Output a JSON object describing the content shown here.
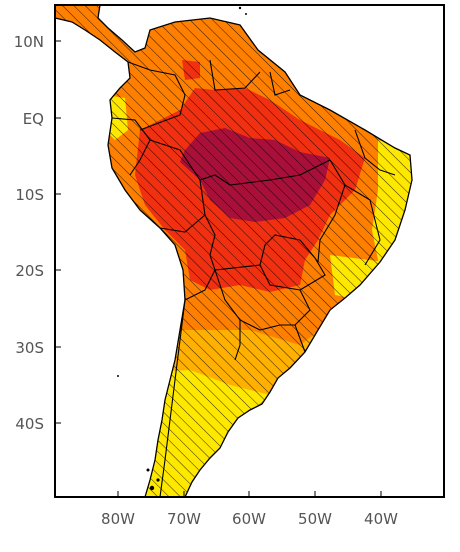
{
  "map": {
    "lat_labels": [
      "10N",
      "EQ",
      "10S",
      "20S",
      "30S",
      "40S"
    ],
    "lon_labels": [
      "80W",
      "70W",
      "60W",
      "50W",
      "40W"
    ],
    "colors": {
      "yellow": "#ffe800",
      "light_orange": "#ffb000",
      "orange": "#ff8000",
      "red": "#f03010",
      "dark_red": "#a8103a",
      "border": "#000000",
      "hatch": "#000000"
    }
  }
}
